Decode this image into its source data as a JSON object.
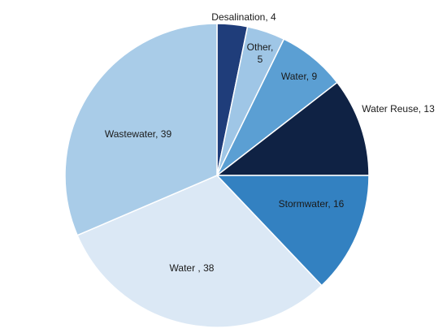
{
  "chart_data": {
    "type": "pie",
    "title": "",
    "start": "12 o'clock",
    "direction": "clockwise",
    "slices": [
      {
        "label": "Desalination, 4",
        "value": 4,
        "color": "#1f3d7a"
      },
      {
        "label": "Other, 5",
        "value": 5,
        "color": "#9fc6e6"
      },
      {
        "label": "Water, 9",
        "value": 9,
        "color": "#5b9fd3"
      },
      {
        "label": "Water Reuse, 13",
        "value": 13,
        "color": "#0f2244"
      },
      {
        "label": "Stormwater, 16",
        "value": 16,
        "color": "#3381c1"
      },
      {
        "label": "Water , 38",
        "value": 38,
        "color": "#dbe8f5"
      },
      {
        "label": "Wastewater, 39",
        "value": 39,
        "color": "#a9cce8"
      }
    ]
  }
}
